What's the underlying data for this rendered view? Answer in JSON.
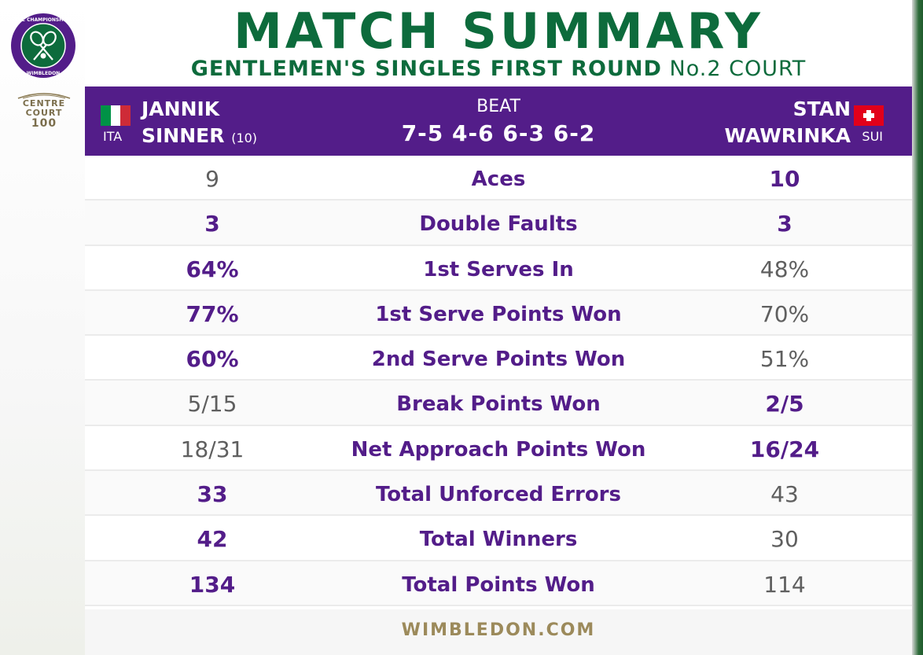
{
  "title": "MATCH SUMMARY",
  "subtitle": {
    "event": "GENTLEMEN'S SINGLES FIRST ROUND",
    "court": "No.2 COURT"
  },
  "branding": {
    "logo_text": "THE CHAMPIONSHIPS WIMBLEDON",
    "centre_court_line1": "CENTRE",
    "centre_court_line2": "COURT",
    "centre_court_num": "100",
    "footer": "WIMBLEDON.COM"
  },
  "colors": {
    "purple": "#531d89",
    "green": "#0d6b3c",
    "gold": "#9c8a5b"
  },
  "player_left": {
    "first": "JANNIK",
    "last": "SINNER",
    "seed": "(10)",
    "country": "ITA",
    "flag": "italy-flag-icon"
  },
  "player_right": {
    "first": "STAN",
    "last": "WAWRINKA",
    "country": "SUI",
    "flag": "switzerland-flag-icon"
  },
  "result": {
    "label": "BEAT",
    "score": "7-5 4-6 6-3 6-2"
  },
  "stats": [
    {
      "label": "Aces",
      "left": "9",
      "right": "10",
      "winner": "right"
    },
    {
      "label": "Double Faults",
      "left": "3",
      "right": "3",
      "winner": "both"
    },
    {
      "label": "1st Serves In",
      "left": "64%",
      "right": "48%",
      "winner": "left"
    },
    {
      "label": "1st Serve Points Won",
      "left": "77%",
      "right": "70%",
      "winner": "left"
    },
    {
      "label": "2nd Serve Points Won",
      "left": "60%",
      "right": "51%",
      "winner": "left"
    },
    {
      "label": "Break Points Won",
      "left": "5/15",
      "right": "2/5",
      "winner": "right"
    },
    {
      "label": "Net Approach Points Won",
      "left": "18/31",
      "right": "16/24",
      "winner": "right"
    },
    {
      "label": "Total Unforced Errors",
      "left": "33",
      "right": "43",
      "winner": "left"
    },
    {
      "label": "Total Winners",
      "left": "42",
      "right": "30",
      "winner": "left"
    },
    {
      "label": "Total Points Won",
      "left": "134",
      "right": "114",
      "winner": "left"
    }
  ]
}
